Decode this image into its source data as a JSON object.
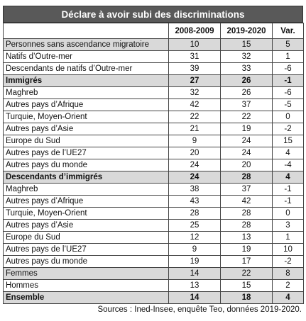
{
  "title": "Déclare à avoir subi des discriminations",
  "table": {
    "columns": [
      "2008-2009",
      "2019-2020",
      "Var."
    ],
    "rows": [
      {
        "label": "Personnes sans ascendance migratoire",
        "values": [
          "10",
          "15",
          "5"
        ],
        "shaded": true,
        "bold": false
      },
      {
        "label": "Natifs d’Outre-mer",
        "values": [
          "31",
          "32",
          "1"
        ],
        "shaded": false,
        "bold": false
      },
      {
        "label": "Descendants de natifs d’Outre-mer",
        "values": [
          "39",
          "33",
          "-6"
        ],
        "shaded": false,
        "bold": false
      },
      {
        "label": "Immigrés",
        "values": [
          "27",
          "26",
          "-1"
        ],
        "shaded": true,
        "bold": true
      },
      {
        "label": "Maghreb",
        "values": [
          "32",
          "26",
          "-6"
        ],
        "shaded": false,
        "bold": false
      },
      {
        "label": "Autres pays d’Afrique",
        "values": [
          "42",
          "37",
          "-5"
        ],
        "shaded": false,
        "bold": false
      },
      {
        "label": "Turquie, Moyen-Orient",
        "values": [
          "22",
          "22",
          "0"
        ],
        "shaded": false,
        "bold": false
      },
      {
        "label": "Autres pays d’Asie",
        "values": [
          "21",
          "19",
          "-2"
        ],
        "shaded": false,
        "bold": false
      },
      {
        "label": "Europe du Sud",
        "values": [
          "9",
          "24",
          "15"
        ],
        "shaded": false,
        "bold": false
      },
      {
        "label": "Autres pays de l’UE27",
        "values": [
          "20",
          "24",
          "4"
        ],
        "shaded": false,
        "bold": false
      },
      {
        "label": "Autres pays du monde",
        "values": [
          "24",
          "20",
          "-4"
        ],
        "shaded": false,
        "bold": false
      },
      {
        "label": "Descendants d’immigrés",
        "values": [
          "24",
          "28",
          "4"
        ],
        "shaded": true,
        "bold": true
      },
      {
        "label": "Maghreb",
        "values": [
          "38",
          "37",
          "-1"
        ],
        "shaded": false,
        "bold": false
      },
      {
        "label": "Autres pays d’Afrique",
        "values": [
          "43",
          "42",
          "-1"
        ],
        "shaded": false,
        "bold": false
      },
      {
        "label": "Turquie, Moyen-Orient",
        "values": [
          "28",
          "28",
          "0"
        ],
        "shaded": false,
        "bold": false
      },
      {
        "label": "Autres pays d’Asie",
        "values": [
          "25",
          "28",
          "3"
        ],
        "shaded": false,
        "bold": false
      },
      {
        "label": "Europe du Sud",
        "values": [
          "12",
          "13",
          "1"
        ],
        "shaded": false,
        "bold": false
      },
      {
        "label": "Autres pays de l’UE27",
        "values": [
          "9",
          "19",
          "10"
        ],
        "shaded": false,
        "bold": false
      },
      {
        "label": "Autres pays du monde",
        "values": [
          "19",
          "17",
          "-2"
        ],
        "shaded": false,
        "bold": false
      },
      {
        "label": "Femmes",
        "values": [
          "14",
          "22",
          "8"
        ],
        "shaded": true,
        "bold": false
      },
      {
        "label": "Hommes",
        "values": [
          "13",
          "15",
          "2"
        ],
        "shaded": false,
        "bold": false
      },
      {
        "label": "Ensemble",
        "values": [
          "14",
          "18",
          "4"
        ],
        "shaded": true,
        "bold": true
      }
    ]
  },
  "source": "Sources : Ined-Insee, enquête Teo, données 2019-2020."
}
